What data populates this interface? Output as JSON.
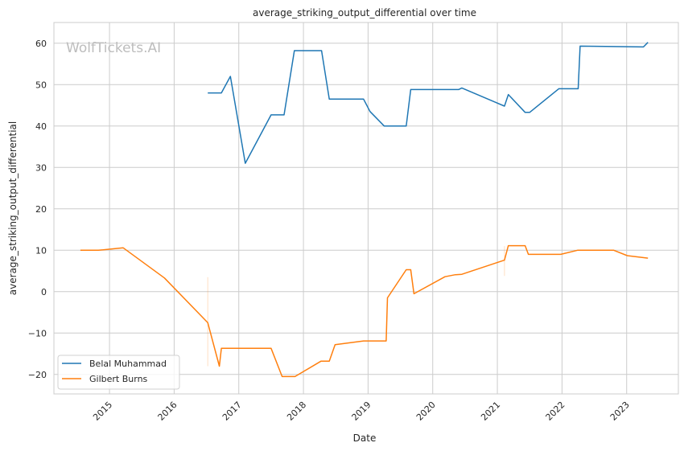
{
  "chart_data": {
    "type": "line",
    "title": "average_striking_output_differential over time",
    "xlabel": "Date",
    "ylabel": "average_striking_output_differential",
    "xlim": [
      2014.14,
      2023.8
    ],
    "ylim": [
      -24.7,
      65.0
    ],
    "xticks": [
      2015,
      2016,
      2017,
      2018,
      2019,
      2020,
      2021,
      2022,
      2023
    ],
    "xtick_labels": [
      "2015",
      "2016",
      "2017",
      "2018",
      "2019",
      "2020",
      "2021",
      "2022",
      "2023"
    ],
    "yticks": [
      -20,
      -10,
      0,
      10,
      20,
      30,
      40,
      50,
      60
    ],
    "ytick_labels": [
      "−20",
      "−10",
      "0",
      "10",
      "20",
      "30",
      "40",
      "50",
      "60"
    ],
    "grid": true,
    "legend_position": "lower-left",
    "watermark": "WolfTickets.AI",
    "series": [
      {
        "name": "Belal Muhammad",
        "color": "#1f77b4",
        "x": [
          2016.52,
          2016.73,
          2016.87,
          2017.1,
          2017.5,
          2017.7,
          2017.86,
          2018.28,
          2018.4,
          2018.93,
          2019.03,
          2019.25,
          2019.59,
          2019.66,
          2020.4,
          2020.45,
          2021.11,
          2021.17,
          2021.43,
          2021.5,
          2021.95,
          2022.25,
          2022.28,
          2023.26,
          2023.33
        ],
        "y": [
          48,
          48,
          52,
          31,
          42.7,
          42.7,
          58.2,
          58.2,
          46.5,
          46.5,
          43.5,
          40,
          40,
          48.8,
          48.8,
          49.2,
          44.8,
          47.6,
          43.3,
          43.3,
          49,
          49,
          59.3,
          59.1,
          60.2
        ]
      },
      {
        "name": "Gilbert Burns",
        "color": "#ff7f0e",
        "x": [
          2014.55,
          2014.83,
          2015.21,
          2015.85,
          2016.52,
          2016.7,
          2016.73,
          2017.5,
          2017.67,
          2017.87,
          2018.27,
          2018.4,
          2018.49,
          2018.93,
          2019.28,
          2019.3,
          2019.59,
          2019.66,
          2019.71,
          2020.19,
          2020.35,
          2020.45,
          2021.11,
          2021.17,
          2021.43,
          2021.48,
          2021.98,
          2022.24,
          2022.8,
          2023.01,
          2023.33
        ],
        "y": [
          10,
          10,
          10.6,
          3.3,
          -7.5,
          -18,
          -13.7,
          -13.7,
          -20.5,
          -20.5,
          -16.8,
          -16.8,
          -12.8,
          -11.9,
          -11.9,
          -1.5,
          5.3,
          5.3,
          -0.5,
          3.6,
          4.1,
          4.2,
          7.6,
          11.1,
          11.1,
          9,
          9,
          10,
          10,
          8.7,
          8.1
        ],
        "bands": [
          {
            "x": 2016.52,
            "low": -18,
            "high": 3.5
          },
          {
            "x": 2021.11,
            "low": 3.8,
            "high": 11
          }
        ]
      }
    ]
  }
}
